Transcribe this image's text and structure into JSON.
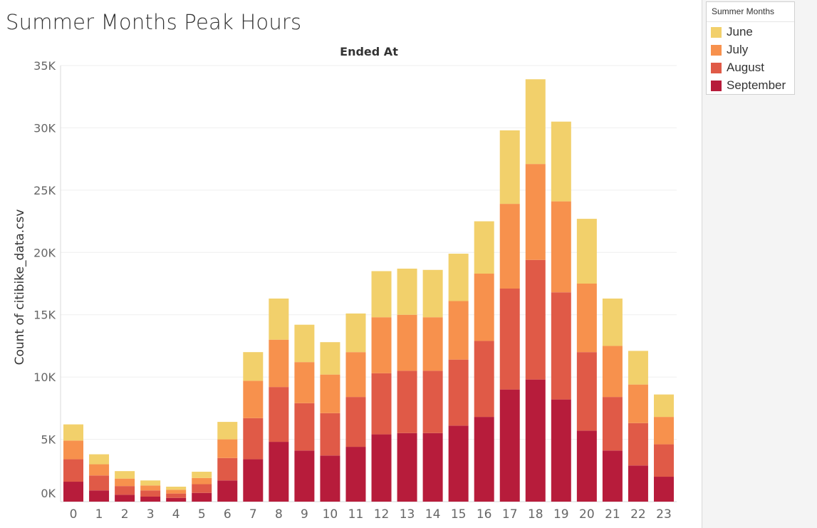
{
  "title": "Summer Months Peak Hours",
  "legend": {
    "title": "Summer Months",
    "items": [
      {
        "label": "June",
        "color": "#f2d06b"
      },
      {
        "label": "July",
        "color": "#f7914d"
      },
      {
        "label": "August",
        "color": "#e05a47"
      },
      {
        "label": "September",
        "color": "#b71c3b"
      }
    ]
  },
  "chart_data": {
    "type": "bar",
    "stacked": true,
    "title": "Ended At",
    "xlabel": "Ended At",
    "ylabel": "Count of citibike_data.csv",
    "ylim": [
      0,
      35000
    ],
    "yticks": [
      0,
      5000,
      10000,
      15000,
      20000,
      25000,
      30000,
      35000
    ],
    "ytick_labels": [
      "0K",
      "5K",
      "10K",
      "15K",
      "20K",
      "25K",
      "30K",
      "35K"
    ],
    "grid": true,
    "legend_position": "top-right",
    "categories": [
      "0",
      "1",
      "2",
      "3",
      "4",
      "5",
      "6",
      "7",
      "8",
      "9",
      "10",
      "11",
      "12",
      "13",
      "14",
      "15",
      "16",
      "17",
      "18",
      "19",
      "20",
      "21",
      "22",
      "23"
    ],
    "series": [
      {
        "name": "September",
        "color": "#b71c3b",
        "values": [
          1600,
          900,
          550,
          400,
          300,
          700,
          1700,
          3400,
          4800,
          4100,
          3700,
          4400,
          5400,
          5500,
          5500,
          6100,
          6800,
          9000,
          9800,
          8200,
          5700,
          4100,
          2900,
          2000
        ]
      },
      {
        "name": "August",
        "color": "#e05a47",
        "values": [
          1800,
          1200,
          700,
          500,
          350,
          700,
          1800,
          3300,
          4400,
          3800,
          3400,
          4000,
          4900,
          5000,
          5000,
          5300,
          6100,
          8100,
          9600,
          8600,
          6300,
          4300,
          3400,
          2600
        ]
      },
      {
        "name": "July",
        "color": "#f7914d",
        "values": [
          1500,
          900,
          600,
          400,
          300,
          500,
          1500,
          3000,
          3800,
          3300,
          3100,
          3600,
          4500,
          4500,
          4300,
          4700,
          5400,
          6800,
          7700,
          7300,
          5500,
          4100,
          3100,
          2200
        ]
      },
      {
        "name": "June",
        "color": "#f2d06b",
        "values": [
          1300,
          800,
          600,
          400,
          250,
          500,
          1400,
          2300,
          3300,
          3000,
          2600,
          3100,
          3700,
          3700,
          3800,
          3800,
          4200,
          5900,
          6800,
          6400,
          5200,
          3800,
          2700,
          1800
        ]
      }
    ]
  }
}
